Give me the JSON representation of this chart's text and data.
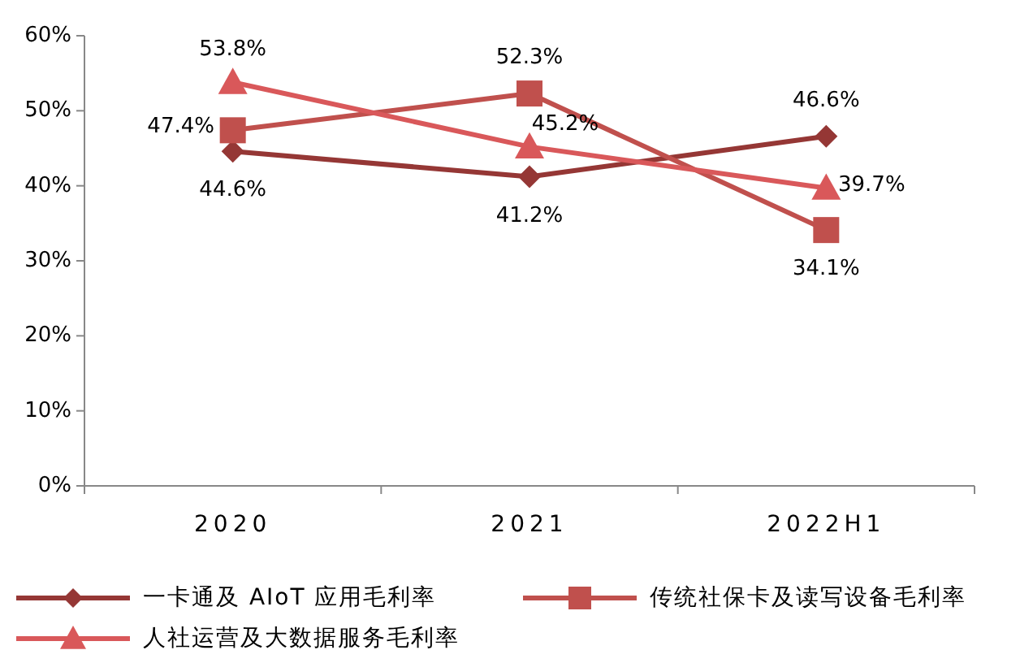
{
  "chart_data": {
    "type": "line",
    "categories": [
      "2020",
      "2021",
      "2022H1"
    ],
    "series": [
      {
        "name": "一卡通及 AIoT 应用毛利率",
        "color": "#953735",
        "marker": "diamond",
        "values": [
          44.6,
          41.2,
          46.6
        ],
        "value_labels": [
          "44.6%",
          "41.2%",
          "46.6%"
        ]
      },
      {
        "name": "传统社保卡及读写设备毛利率",
        "color": "#C0504D",
        "marker": "square",
        "values": [
          47.4,
          52.3,
          34.1
        ],
        "value_labels": [
          "47.4%",
          "52.3%",
          "34.1%"
        ]
      },
      {
        "name": "人社运营及大数据服务毛利率",
        "color": "#D9585A",
        "marker": "triangle",
        "values": [
          53.8,
          45.2,
          39.7
        ],
        "value_labels": [
          "53.8%",
          "45.2%",
          "39.7%"
        ]
      }
    ],
    "ylim": [
      0,
      60
    ],
    "yticks": [
      {
        "value": 0,
        "label": "0%"
      },
      {
        "value": 10,
        "label": "10%"
      },
      {
        "value": 20,
        "label": "20%"
      },
      {
        "value": 30,
        "label": "30%"
      },
      {
        "value": 40,
        "label": "40%"
      },
      {
        "value": 50,
        "label": "50%"
      },
      {
        "value": 60,
        "label": "60%"
      }
    ],
    "legend": "bottom",
    "grid": false
  }
}
